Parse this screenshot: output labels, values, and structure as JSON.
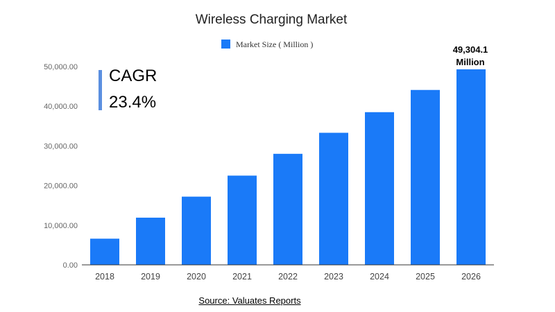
{
  "chart_data": {
    "type": "bar",
    "title": "Wireless Charging Market",
    "categories": [
      "2018",
      "2019",
      "2020",
      "2021",
      "2022",
      "2023",
      "2024",
      "2025",
      "2026"
    ],
    "series": [
      {
        "name": "Market Size ( Million )",
        "values": [
          6600,
          11900,
          17200,
          22500,
          28000,
          33300,
          38500,
          44100,
          49304.1
        ]
      }
    ],
    "ylim": [
      0,
      50000
    ],
    "yticks": [
      "0.00",
      "10,000.00",
      "20,000.00",
      "30,000.00",
      "40,000.00",
      "50,000.00"
    ],
    "xlabel": "",
    "ylabel": "",
    "grid": false,
    "legend_position": "top",
    "bar_color": "#1a7af8",
    "annotations": {
      "peak_value": "49,304.1",
      "peak_unit": "Million",
      "cagr_label": "CAGR",
      "cagr_value": "23.4%"
    }
  },
  "cagr_marker_color": "#5b8fe0",
  "source_text": "Source: Valuates Reports"
}
